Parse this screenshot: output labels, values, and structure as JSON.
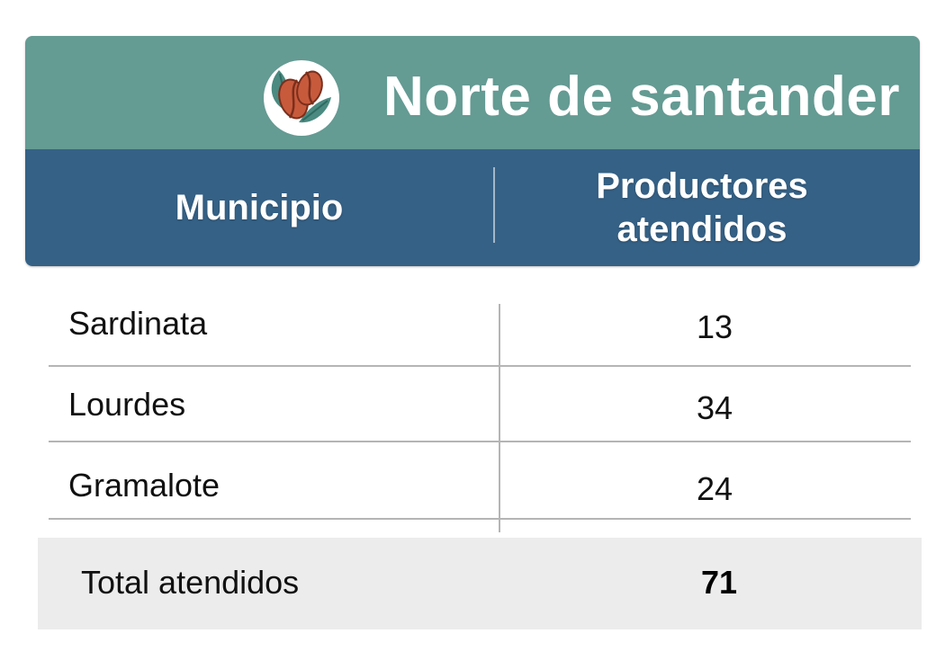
{
  "title": "Norte de santander",
  "logo": {
    "icon": "coffee-beans-icon"
  },
  "columns": {
    "municipio": "Municipio",
    "productores_line1": "Productores",
    "productores_line2": "atendidos"
  },
  "rows": [
    {
      "municipio": "Sardinata",
      "productores": "13"
    },
    {
      "municipio": "Lourdes",
      "productores": "34"
    },
    {
      "municipio": "Gramalote",
      "productores": "24"
    }
  ],
  "total": {
    "label": "Total atendidos",
    "value": "71"
  },
  "colors": {
    "title_bg": "#649b93",
    "header_bg": "#356186",
    "bean": "#c85a3c",
    "leaf": "#4a8a80",
    "total_bg": "#ececec",
    "rule": "#b5b5b5"
  }
}
